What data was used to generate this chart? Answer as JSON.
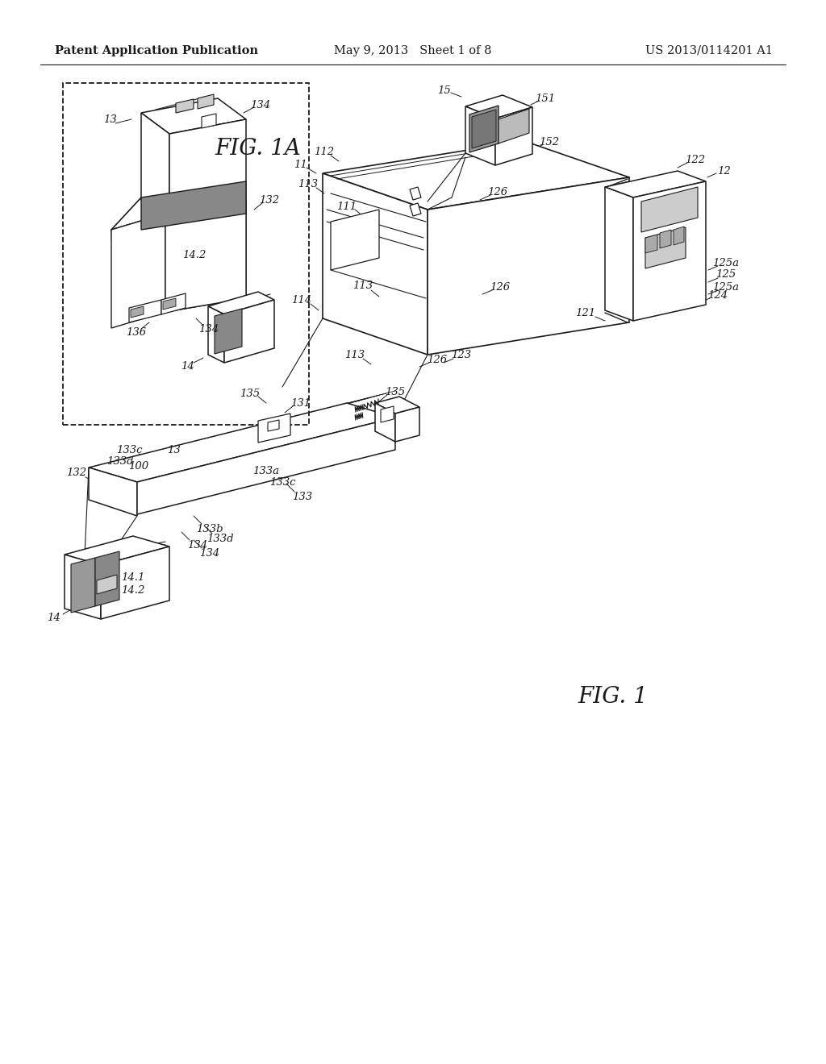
{
  "background_color": "#ffffff",
  "line_color": "#1a1a1a",
  "header_left": "Patent Application Publication",
  "header_center": "May 9, 2013   Sheet 1 of 8",
  "header_right": "US 2013/0114201 A1",
  "header_fontsize": 10.5,
  "fig1a_label": "FIG. 1A",
  "fig1_label": "FIG. 1",
  "label_fontsize": 9.0,
  "fig_label_fontsize": 20
}
